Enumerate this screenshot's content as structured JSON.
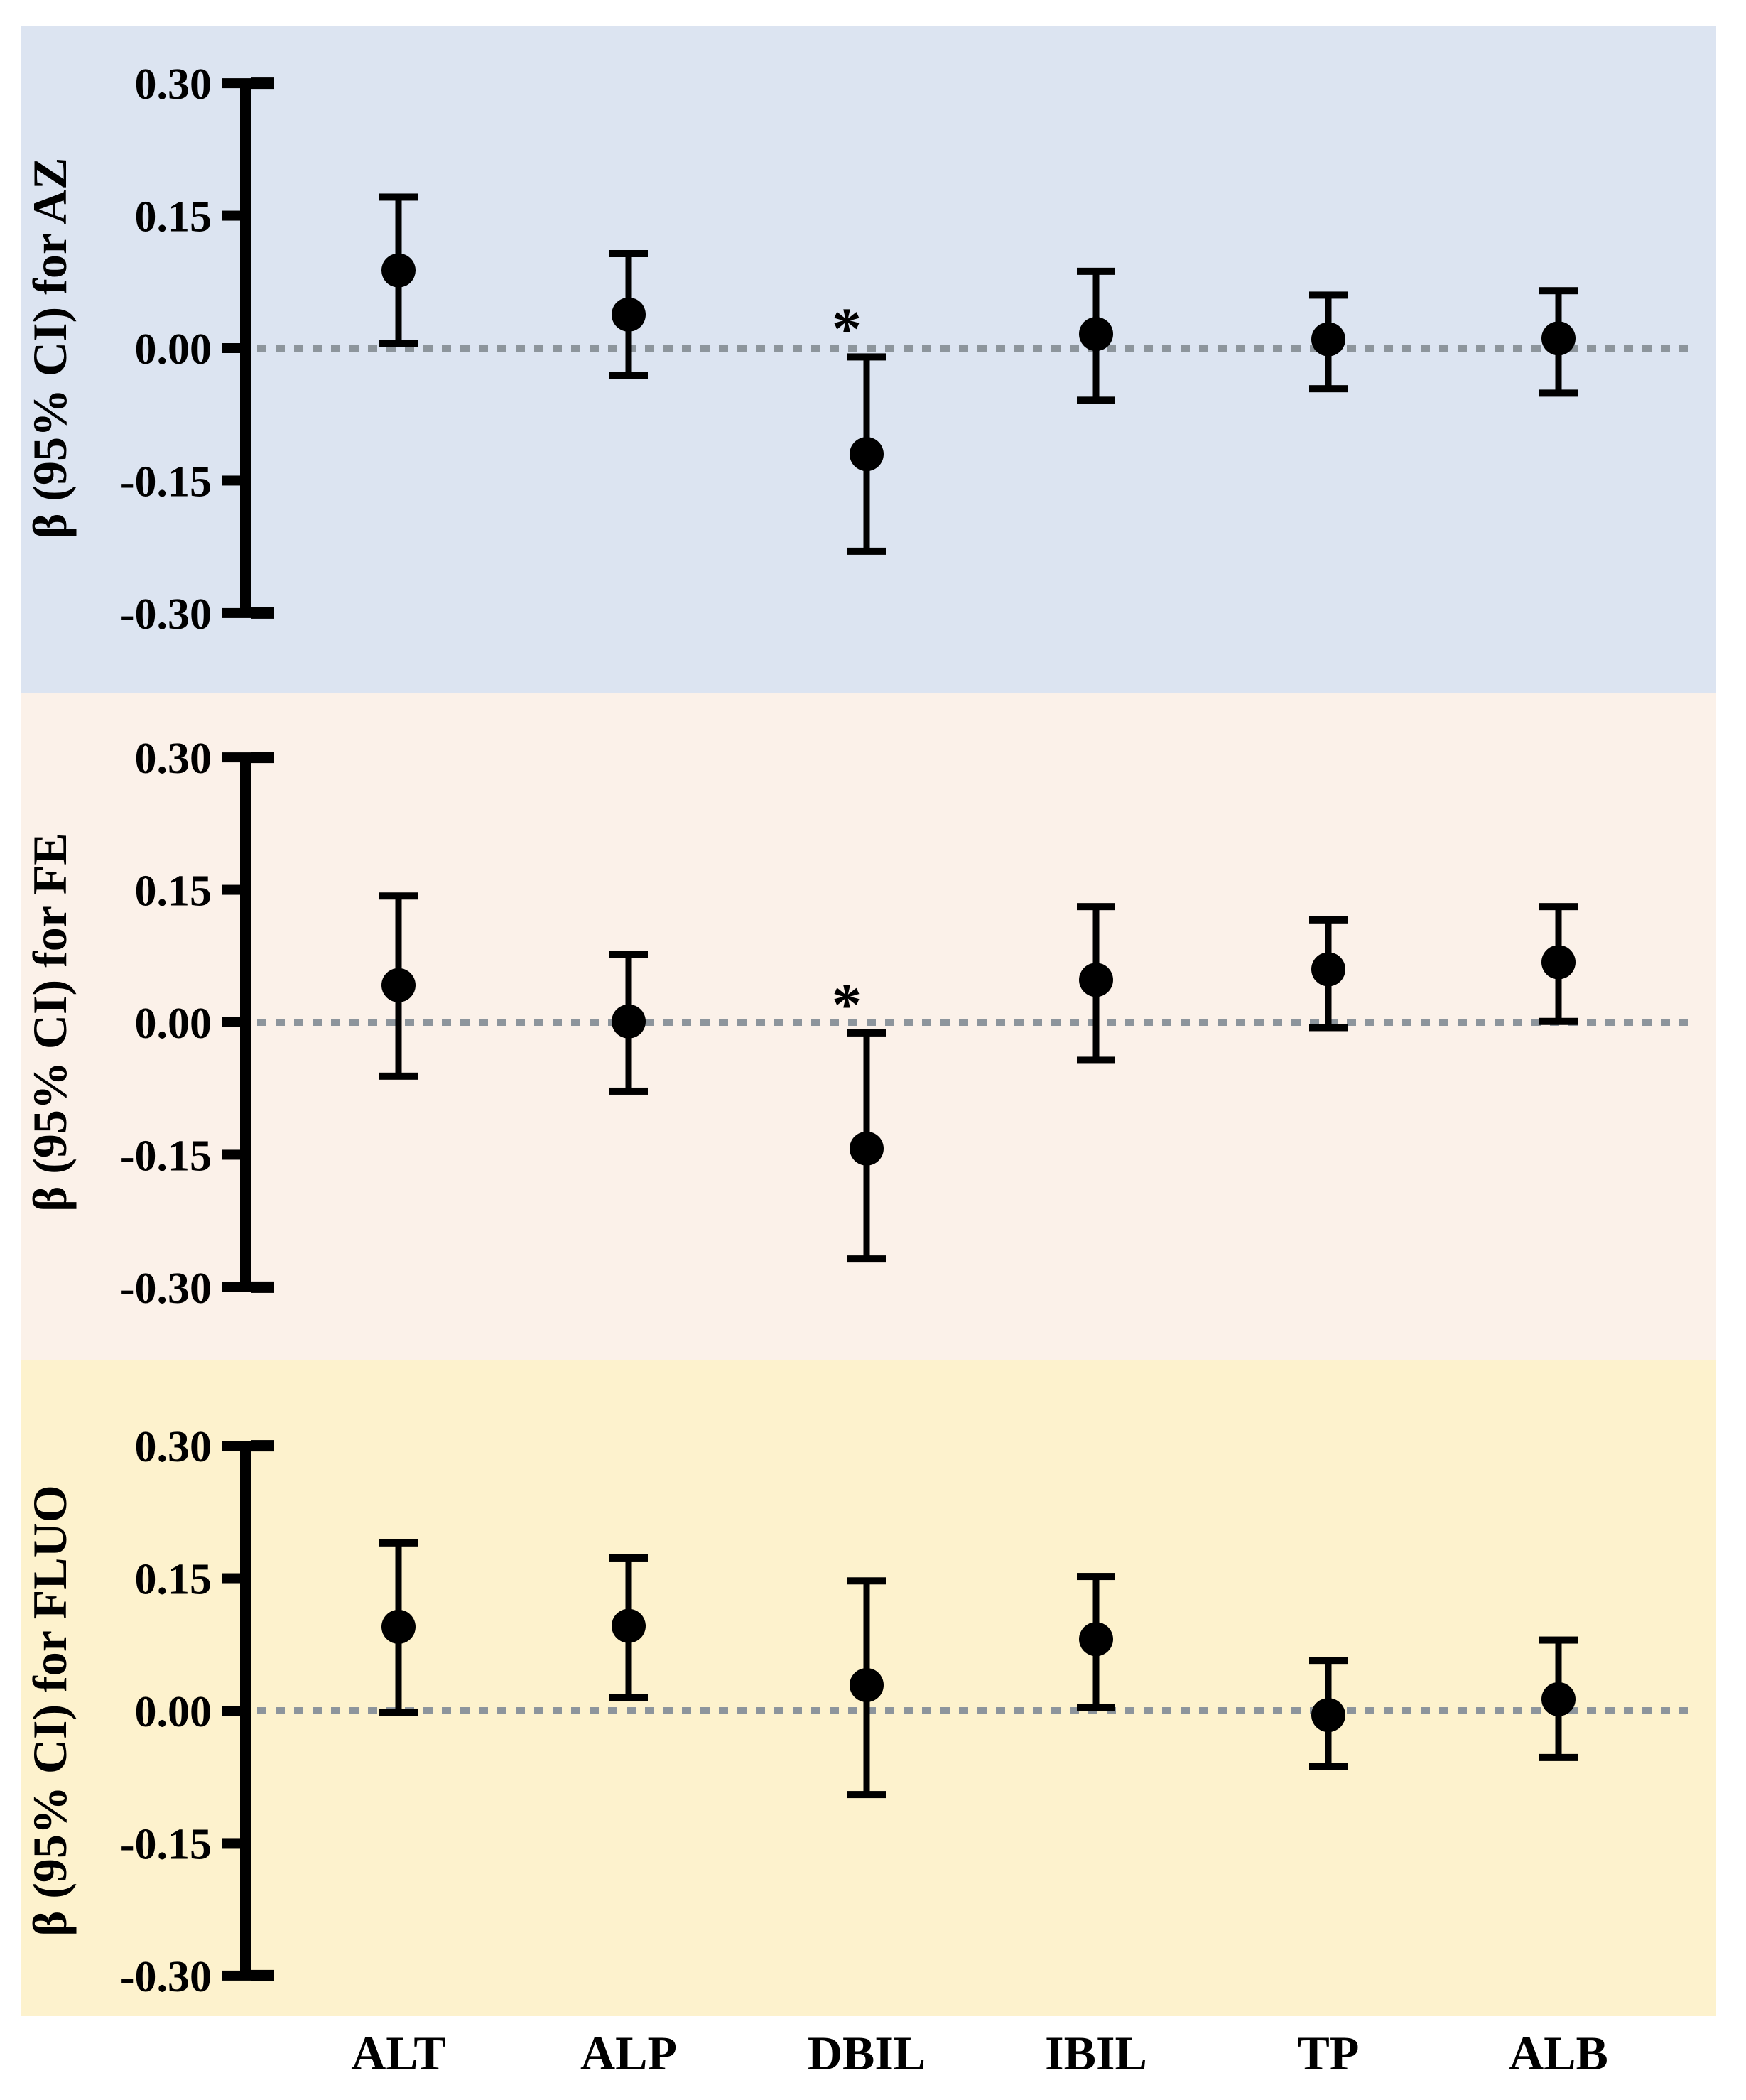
{
  "figure": {
    "x_categories": [
      "ALT",
      "ALP",
      "DBIL",
      "IBIL",
      "TP",
      "ALB"
    ],
    "y_tick_labels": [
      "0.30",
      "0.15",
      "0.00",
      "-0.15",
      "-0.30"
    ],
    "significance_marker": "*"
  },
  "colors": {
    "figure_bg": "#ffffff",
    "panel_az_bg": "#dce4f1",
    "panel_fe_bg": "#fbf1e9",
    "panel_fluo_bg": "#fdf2cd",
    "marker": "#000000",
    "zero_line": "#8d959c",
    "significance": "#e8363d"
  },
  "chart_data": [
    {
      "type": "scatter",
      "panel": "AZ",
      "ylabel": "β (95% CI) for AZ",
      "background": "#dce4f1",
      "categories": [
        "ALT",
        "ALP",
        "DBIL",
        "IBIL",
        "TP",
        "ALB"
      ],
      "series": [
        {
          "name": "beta",
          "values": [
            0.088,
            0.038,
            -0.12,
            0.016,
            0.01,
            0.011
          ]
        },
        {
          "name": "ci_low",
          "values": [
            0.005,
            -0.031,
            -0.23,
            -0.059,
            -0.046,
            -0.051
          ]
        },
        {
          "name": "ci_high",
          "values": [
            0.171,
            0.107,
            -0.01,
            0.087,
            0.06,
            0.065
          ]
        }
      ],
      "significant": [
        false,
        false,
        true,
        false,
        false,
        false
      ],
      "ylim": [
        -0.3,
        0.3
      ],
      "yticks": [
        0.3,
        0.15,
        0.0,
        -0.15,
        -0.3
      ],
      "zero_line": true,
      "legend": "none",
      "grid": "off"
    },
    {
      "type": "scatter",
      "panel": "FE",
      "ylabel": "β (95% CI) for FE",
      "background": "#fbf1e9",
      "categories": [
        "ALT",
        "ALP",
        "DBIL",
        "IBIL",
        "TP",
        "ALB"
      ],
      "series": [
        {
          "name": "beta",
          "values": [
            0.042,
            0.001,
            -0.143,
            0.048,
            0.06,
            0.068
          ]
        },
        {
          "name": "ci_low",
          "values": [
            -0.061,
            -0.078,
            -0.268,
            -0.043,
            -0.006,
            0.001
          ]
        },
        {
          "name": "ci_high",
          "values": [
            0.143,
            0.077,
            -0.012,
            0.131,
            0.116,
            0.131
          ]
        }
      ],
      "significant": [
        false,
        false,
        true,
        false,
        false,
        false
      ],
      "ylim": [
        -0.3,
        0.3
      ],
      "yticks": [
        0.3,
        0.15,
        0.0,
        -0.15,
        -0.3
      ],
      "zero_line": true,
      "legend": "none",
      "grid": "off"
    },
    {
      "type": "scatter",
      "panel": "FLUO",
      "ylabel": "β (95% CI) for FLUO",
      "background": "#fdf2cd",
      "categories": [
        "ALT",
        "ALP",
        "DBIL",
        "IBIL",
        "TP",
        "ALB"
      ],
      "series": [
        {
          "name": "beta",
          "values": [
            0.095,
            0.096,
            0.029,
            0.081,
            -0.005,
            0.013
          ]
        },
        {
          "name": "ci_low",
          "values": [
            -0.002,
            0.015,
            -0.095,
            0.004,
            -0.063,
            -0.053
          ]
        },
        {
          "name": "ci_high",
          "values": [
            0.19,
            0.173,
            0.147,
            0.152,
            0.057,
            0.08
          ]
        }
      ],
      "significant": [
        false,
        false,
        false,
        false,
        false,
        false
      ],
      "ylim": [
        -0.3,
        0.3
      ],
      "yticks": [
        0.3,
        0.15,
        0.0,
        -0.15,
        -0.3
      ],
      "zero_line": true,
      "legend": "none",
      "grid": "off"
    }
  ]
}
